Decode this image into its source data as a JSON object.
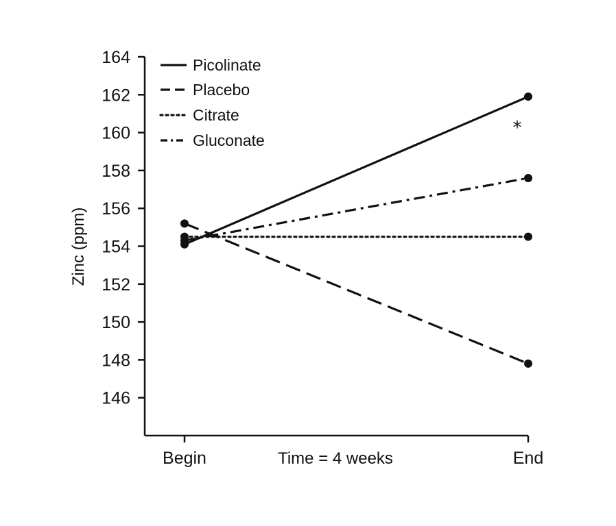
{
  "chart_data": {
    "type": "line",
    "title": "",
    "ylabel": "Zinc (ppm)",
    "xlabel": "Time = 4 weeks",
    "categories": [
      "Begin",
      "End"
    ],
    "ylim": [
      144,
      164
    ],
    "yticks": [
      146,
      148,
      150,
      152,
      154,
      156,
      158,
      160,
      162,
      164
    ],
    "grid": false,
    "legend_position": "top-left",
    "series": [
      {
        "name": "Picolinate",
        "style": "solid",
        "values": [
          154.1,
          161.9
        ]
      },
      {
        "name": "Placebo",
        "style": "dashed",
        "values": [
          155.2,
          147.8
        ]
      },
      {
        "name": "Citrate",
        "style": "dotted",
        "values": [
          154.5,
          154.5
        ]
      },
      {
        "name": "Gluconate",
        "style": "dash-dot",
        "values": [
          154.3,
          157.6
        ]
      }
    ],
    "annotations": [
      {
        "text": "*",
        "series": "Picolinate",
        "category": "End"
      }
    ],
    "color": "#111111"
  }
}
